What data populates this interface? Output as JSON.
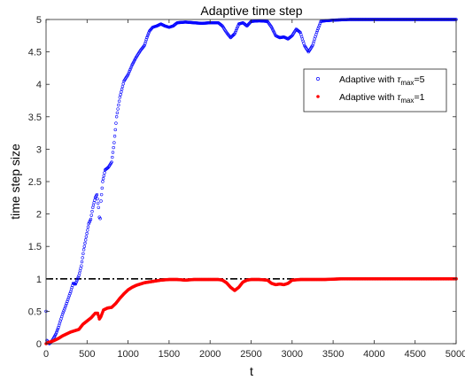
{
  "chart_data": {
    "type": "scatter",
    "title": "Adaptive time step",
    "xlabel": "t",
    "ylabel": "time step size",
    "xlim": [
      0,
      5000
    ],
    "ylim": [
      0,
      5
    ],
    "x_ticks": [
      "0",
      "500",
      "1000",
      "1500",
      "2000",
      "2500",
      "3000",
      "3500",
      "4000",
      "4500",
      "5000"
    ],
    "y_ticks": [
      "0",
      "0.5",
      "1",
      "1.5",
      "2",
      "2.5",
      "3",
      "3.5",
      "4",
      "4.5",
      "5"
    ],
    "grid": false,
    "legend_position": "top-right",
    "reference_line": {
      "y": 1,
      "style": "dash-dot",
      "color": "#000000"
    },
    "series": [
      {
        "name_prefix": "Adaptive with ",
        "name_symbol": "τ",
        "name_subscript": "max",
        "name_suffix": "=5",
        "marker": "open-circle",
        "color": "#0000ff",
        "points": [
          [
            0,
            0.5
          ],
          [
            10,
            0.05
          ],
          [
            40,
            0.0
          ],
          [
            60,
            0.02
          ],
          [
            90,
            0.08
          ],
          [
            120,
            0.15
          ],
          [
            150,
            0.25
          ],
          [
            200,
            0.45
          ],
          [
            250,
            0.62
          ],
          [
            300,
            0.8
          ],
          [
            330,
            0.93
          ],
          [
            360,
            0.92
          ],
          [
            400,
            1.05
          ],
          [
            430,
            1.2
          ],
          [
            460,
            1.45
          ],
          [
            490,
            1.65
          ],
          [
            520,
            1.85
          ],
          [
            545,
            1.92
          ],
          [
            570,
            2.1
          ],
          [
            600,
            2.25
          ],
          [
            620,
            2.3
          ],
          [
            640,
            2.1
          ],
          [
            650,
            1.95
          ],
          [
            660,
            1.93
          ],
          [
            670,
            2.2
          ],
          [
            690,
            2.5
          ],
          [
            720,
            2.68
          ],
          [
            760,
            2.72
          ],
          [
            800,
            2.8
          ],
          [
            830,
            3.1
          ],
          [
            860,
            3.5
          ],
          [
            900,
            3.8
          ],
          [
            950,
            4.05
          ],
          [
            1000,
            4.15
          ],
          [
            1050,
            4.3
          ],
          [
            1100,
            4.42
          ],
          [
            1150,
            4.52
          ],
          [
            1200,
            4.6
          ],
          [
            1230,
            4.72
          ],
          [
            1260,
            4.82
          ],
          [
            1300,
            4.88
          ],
          [
            1350,
            4.9
          ],
          [
            1400,
            4.93
          ],
          [
            1450,
            4.9
          ],
          [
            1500,
            4.88
          ],
          [
            1550,
            4.9
          ],
          [
            1600,
            4.95
          ],
          [
            1700,
            4.96
          ],
          [
            1800,
            4.95
          ],
          [
            1900,
            4.94
          ],
          [
            2000,
            4.95
          ],
          [
            2100,
            4.95
          ],
          [
            2150,
            4.9
          ],
          [
            2200,
            4.8
          ],
          [
            2250,
            4.72
          ],
          [
            2300,
            4.78
          ],
          [
            2350,
            4.93
          ],
          [
            2400,
            4.95
          ],
          [
            2450,
            4.9
          ],
          [
            2500,
            4.97
          ],
          [
            2600,
            4.98
          ],
          [
            2700,
            4.97
          ],
          [
            2750,
            4.88
          ],
          [
            2800,
            4.75
          ],
          [
            2850,
            4.72
          ],
          [
            2900,
            4.73
          ],
          [
            2950,
            4.7
          ],
          [
            3000,
            4.75
          ],
          [
            3050,
            4.85
          ],
          [
            3100,
            4.8
          ],
          [
            3150,
            4.6
          ],
          [
            3200,
            4.5
          ],
          [
            3250,
            4.6
          ],
          [
            3300,
            4.8
          ],
          [
            3350,
            4.97
          ],
          [
            3400,
            4.98
          ],
          [
            3500,
            4.99
          ],
          [
            3700,
            5.0
          ],
          [
            4000,
            5.0
          ],
          [
            4500,
            5.0
          ],
          [
            4700,
            5.0
          ],
          [
            5000,
            5.0
          ]
        ]
      },
      {
        "name_prefix": "Adaptive with ",
        "name_symbol": "τ",
        "name_subscript": "max",
        "name_suffix": "=1",
        "marker": "filled-dot",
        "color": "#ff0000",
        "points": [
          [
            0,
            0.0
          ],
          [
            30,
            0.02
          ],
          [
            60,
            0.03
          ],
          [
            100,
            0.05
          ],
          [
            150,
            0.08
          ],
          [
            200,
            0.12
          ],
          [
            250,
            0.15
          ],
          [
            300,
            0.18
          ],
          [
            350,
            0.2
          ],
          [
            400,
            0.22
          ],
          [
            450,
            0.3
          ],
          [
            500,
            0.35
          ],
          [
            550,
            0.4
          ],
          [
            600,
            0.47
          ],
          [
            630,
            0.47
          ],
          [
            650,
            0.38
          ],
          [
            670,
            0.42
          ],
          [
            700,
            0.52
          ],
          [
            750,
            0.55
          ],
          [
            800,
            0.56
          ],
          [
            850,
            0.62
          ],
          [
            900,
            0.7
          ],
          [
            950,
            0.77
          ],
          [
            1000,
            0.83
          ],
          [
            1050,
            0.87
          ],
          [
            1100,
            0.9
          ],
          [
            1150,
            0.92
          ],
          [
            1200,
            0.94
          ],
          [
            1300,
            0.96
          ],
          [
            1400,
            0.98
          ],
          [
            1500,
            0.99
          ],
          [
            1600,
            0.99
          ],
          [
            1700,
            0.98
          ],
          [
            1800,
            0.99
          ],
          [
            1900,
            0.99
          ],
          [
            2000,
            0.99
          ],
          [
            2100,
            0.99
          ],
          [
            2150,
            0.98
          ],
          [
            2200,
            0.94
          ],
          [
            2250,
            0.87
          ],
          [
            2300,
            0.82
          ],
          [
            2350,
            0.87
          ],
          [
            2400,
            0.95
          ],
          [
            2450,
            0.98
          ],
          [
            2500,
            0.99
          ],
          [
            2600,
            0.99
          ],
          [
            2700,
            0.98
          ],
          [
            2750,
            0.93
          ],
          [
            2800,
            0.91
          ],
          [
            2850,
            0.92
          ],
          [
            2900,
            0.91
          ],
          [
            2950,
            0.93
          ],
          [
            3000,
            0.98
          ],
          [
            3100,
            0.99
          ],
          [
            3200,
            0.99
          ],
          [
            3400,
            0.99
          ],
          [
            3600,
            1.0
          ],
          [
            3800,
            1.0
          ],
          [
            4000,
            1.0
          ],
          [
            4200,
            1.0
          ],
          [
            4500,
            1.0
          ],
          [
            4800,
            1.0
          ],
          [
            5000,
            1.0
          ]
        ]
      }
    ]
  }
}
